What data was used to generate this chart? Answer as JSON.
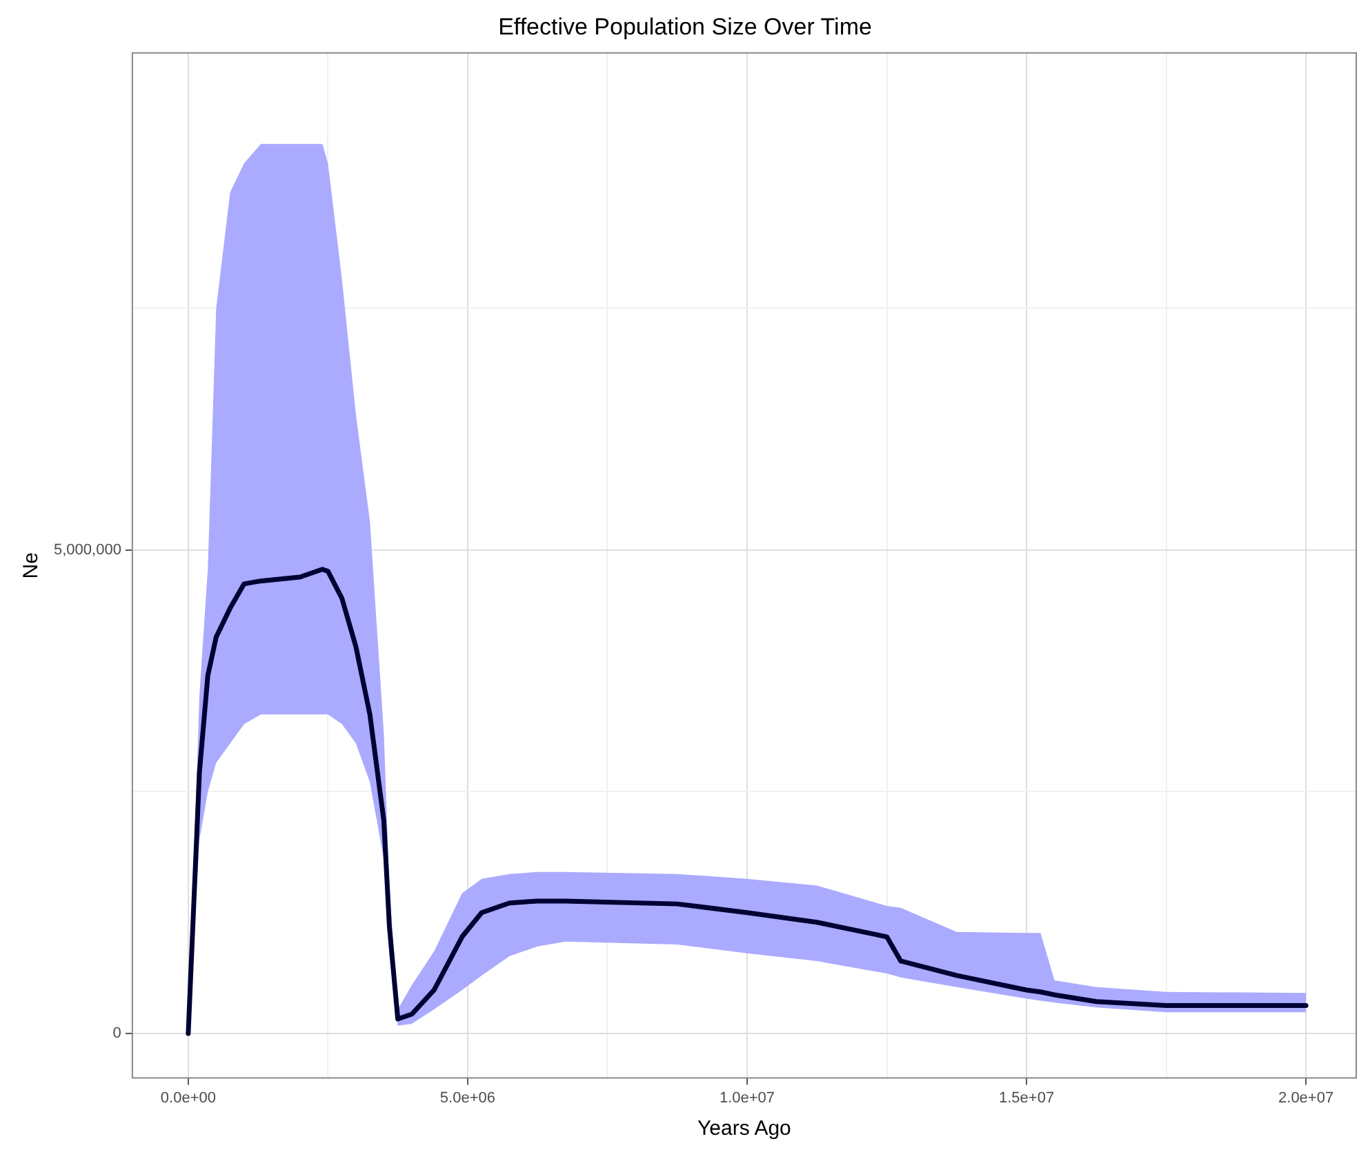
{
  "chart_data": {
    "type": "line",
    "title": "Effective Population Size Over Time",
    "xlabel": "Years Ago",
    "ylabel": "Ne",
    "x": [
      0,
      200000,
      350000,
      500000,
      750000,
      1000000,
      1300000,
      2000000,
      2400000,
      2500000,
      2750000,
      3000000,
      3250000,
      3500000,
      3600000,
      3750000,
      4000000,
      4400000,
      4900000,
      5250000,
      5750000,
      6250000,
      6750000,
      8750000,
      10000000,
      11250000,
      12500000,
      12750000,
      13750000,
      15000000,
      15250000,
      15500000,
      16250000,
      17500000,
      20000000
    ],
    "series": [
      {
        "color": "#000033",
        "values": [
          0,
          2700000,
          3700000,
          4100000,
          4400000,
          4650000,
          4680000,
          4720000,
          4800000,
          4780000,
          4500000,
          4000000,
          3300000,
          2200000,
          1100000,
          150000,
          200000,
          450000,
          1000000,
          1250000,
          1350000,
          1370000,
          1370000,
          1340000,
          1250000,
          1150000,
          1000000,
          750000,
          600000,
          450000,
          430000,
          400000,
          330000,
          290000,
          290000
        ],
        "lower": [
          0,
          2000000,
          2500000,
          2800000,
          3000000,
          3200000,
          3300000,
          3300000,
          3300000,
          3300000,
          3200000,
          3000000,
          2600000,
          1800000,
          800000,
          80000,
          100000,
          250000,
          450000,
          600000,
          800000,
          900000,
          950000,
          920000,
          830000,
          750000,
          620000,
          580000,
          480000,
          360000,
          340000,
          320000,
          270000,
          220000,
          220000
        ],
        "upper": [
          0,
          3500000,
          4800000,
          7500000,
          8700000,
          9000000,
          9200000,
          9200000,
          9200000,
          9000000,
          7800000,
          6400000,
          5300000,
          3100000,
          1500000,
          250000,
          500000,
          850000,
          1450000,
          1600000,
          1650000,
          1670000,
          1670000,
          1650000,
          1600000,
          1530000,
          1320000,
          1300000,
          1050000,
          1040000,
          1040000,
          550000,
          480000,
          430000,
          420000
        ]
      }
    ],
    "xlim": [
      -1000000,
      20900000
    ],
    "xticks": [
      {
        "value": 0,
        "label": "0.0e+00"
      },
      {
        "value": 2500000,
        "label": null
      },
      {
        "value": 5000000,
        "label": "5.0e+06"
      },
      {
        "value": 7500000,
        "label": null
      },
      {
        "value": 10000000,
        "label": "1.0e+07"
      },
      {
        "value": 12500000,
        "label": null
      },
      {
        "value": 15000000,
        "label": "1.5e+07"
      },
      {
        "value": 17500000,
        "label": null
      },
      {
        "value": 20000000,
        "label": "2.0e+07"
      }
    ],
    "ylim": [
      -460000,
      10140000
    ],
    "yticks": [
      {
        "value": 0,
        "label": "0"
      },
      {
        "value": 2500000,
        "label": null
      },
      {
        "value": 5000000,
        "label": "5,000,000"
      },
      {
        "value": 7500000,
        "label": null
      }
    ],
    "grid": true,
    "legend": false,
    "marker": "none",
    "line_style": "solid"
  }
}
